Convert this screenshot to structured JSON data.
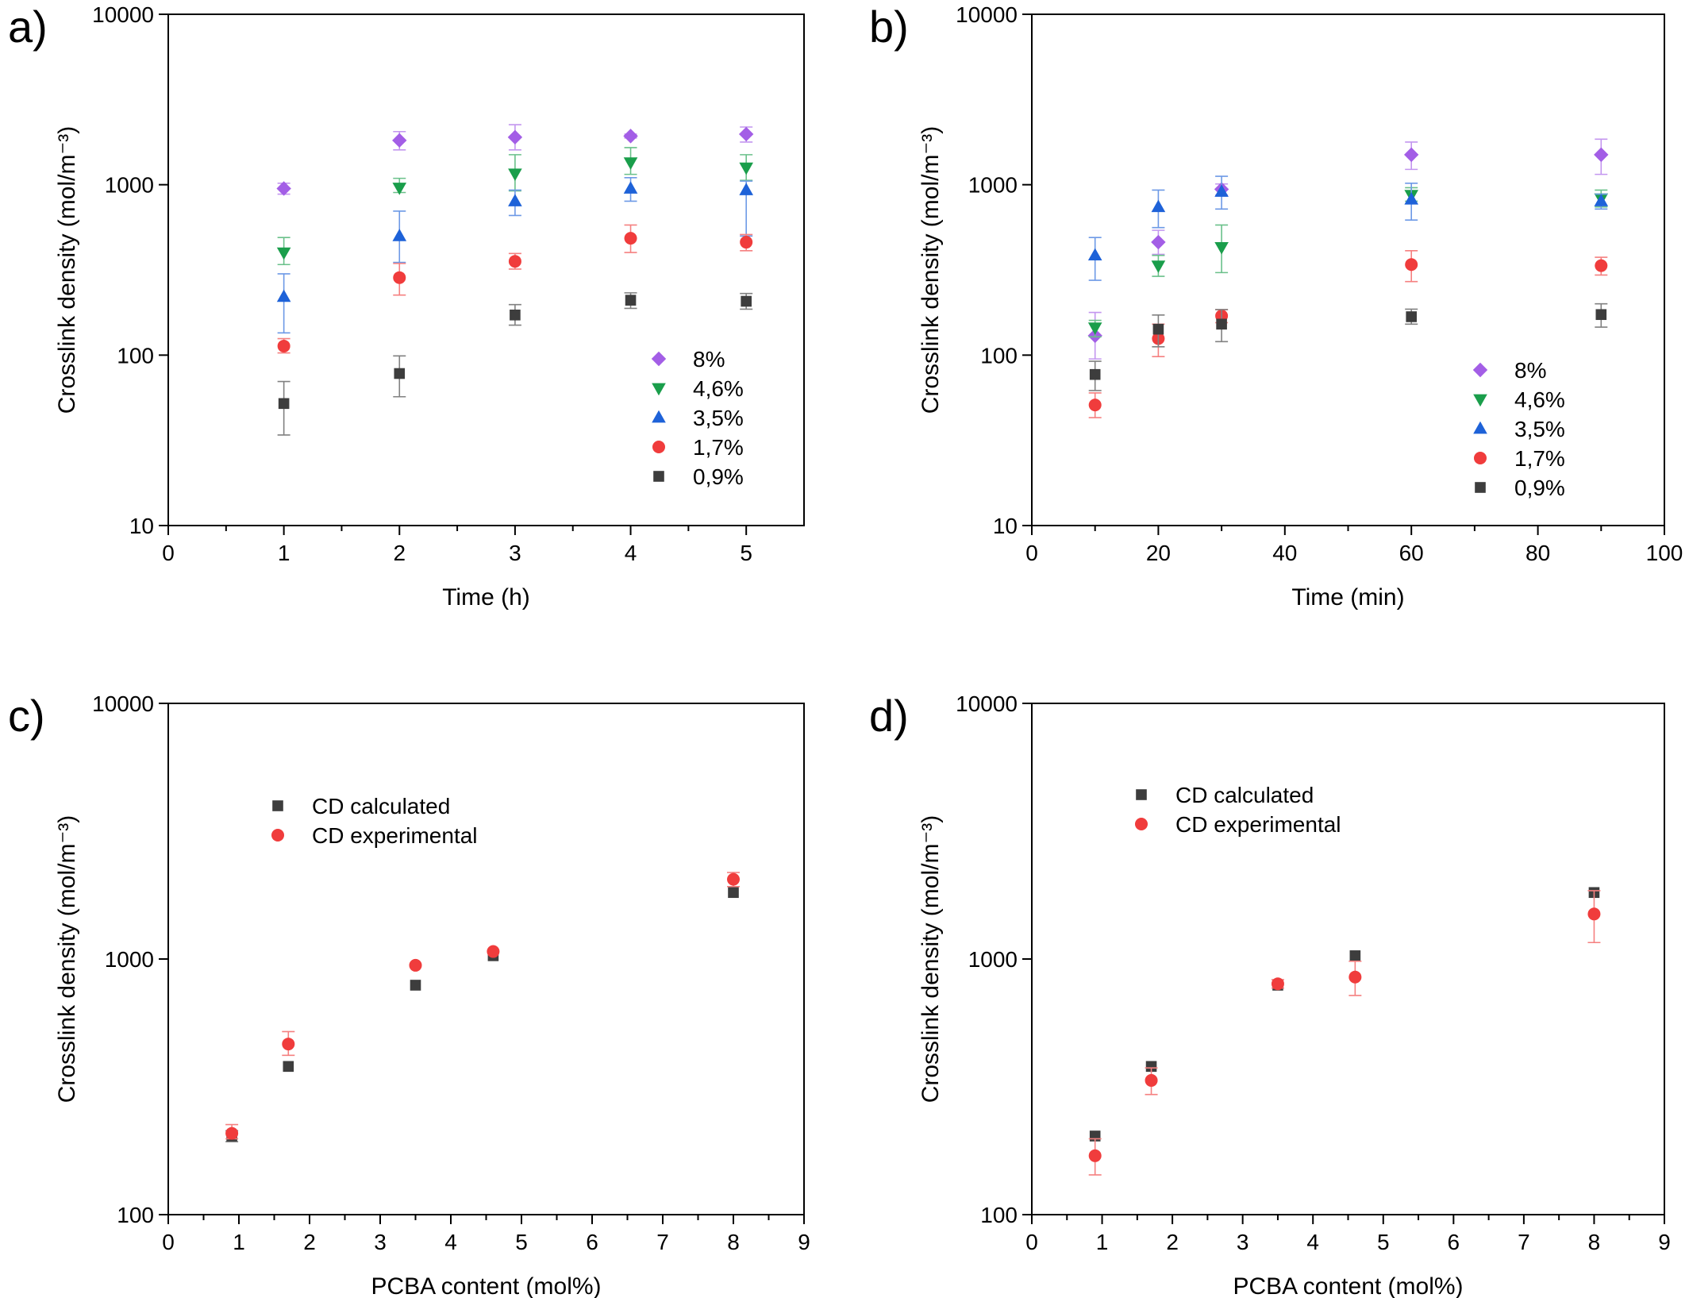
{
  "chart_data": [
    {
      "panel": "a)",
      "type": "scatter",
      "xlabel": "Time (h)",
      "ylabel": "Crosslink density (mol/m⁻³)",
      "xlim": [
        0,
        5.5
      ],
      "ylim": [
        10,
        10000
      ],
      "yscale": "log",
      "xticks": [
        0,
        1,
        2,
        3,
        4,
        5
      ],
      "yticks": [
        10,
        100,
        1000,
        10000
      ],
      "legend_position": "lower-right",
      "series": [
        {
          "name": "8%",
          "marker": "diamond",
          "color": "#a35ee6",
          "points": [
            {
              "x": 1,
              "y": 950,
              "lo": 880,
              "hi": 1020
            },
            {
              "x": 2,
              "y": 1820,
              "lo": 1600,
              "hi": 2050
            },
            {
              "x": 3,
              "y": 1900,
              "lo": 1600,
              "hi": 2250
            },
            {
              "x": 4,
              "y": 1930,
              "lo": 1880,
              "hi": 1980
            },
            {
              "x": 5,
              "y": 1980,
              "lo": 1780,
              "hi": 2180
            }
          ]
        },
        {
          "name": "4,6%",
          "marker": "triangle-down",
          "color": "#1a9e4b",
          "points": [
            {
              "x": 1,
              "y": 400,
              "lo": 340,
              "hi": 490
            },
            {
              "x": 2,
              "y": 960,
              "lo": 900,
              "hi": 1090
            },
            {
              "x": 3,
              "y": 1160,
              "lo": 920,
              "hi": 1500
            },
            {
              "x": 4,
              "y": 1350,
              "lo": 1150,
              "hi": 1650
            },
            {
              "x": 5,
              "y": 1260,
              "lo": 1060,
              "hi": 1500
            }
          ]
        },
        {
          "name": "3,5%",
          "marker": "triangle-up",
          "color": "#1e62d8",
          "points": [
            {
              "x": 1,
              "y": 220,
              "lo": 135,
              "hi": 300
            },
            {
              "x": 2,
              "y": 500,
              "lo": 350,
              "hi": 700
            },
            {
              "x": 3,
              "y": 800,
              "lo": 660,
              "hi": 930
            },
            {
              "x": 4,
              "y": 950,
              "lo": 800,
              "hi": 1100
            },
            {
              "x": 5,
              "y": 930,
              "lo": 500,
              "hi": 1050
            }
          ]
        },
        {
          "name": "1,7%",
          "marker": "circle",
          "color": "#f03c3c",
          "points": [
            {
              "x": 1,
              "y": 113,
              "lo": 103,
              "hi": 125
            },
            {
              "x": 2,
              "y": 285,
              "lo": 225,
              "hi": 345
            },
            {
              "x": 3,
              "y": 355,
              "lo": 320,
              "hi": 395
            },
            {
              "x": 4,
              "y": 485,
              "lo": 400,
              "hi": 580
            },
            {
              "x": 5,
              "y": 460,
              "lo": 410,
              "hi": 510
            }
          ]
        },
        {
          "name": "0,9%",
          "marker": "square",
          "color": "#3d3d3d",
          "points": [
            {
              "x": 1,
              "y": 52,
              "lo": 34,
              "hi": 70
            },
            {
              "x": 2,
              "y": 78,
              "lo": 57,
              "hi": 99
            },
            {
              "x": 3,
              "y": 172,
              "lo": 150,
              "hi": 198
            },
            {
              "x": 4,
              "y": 210,
              "lo": 188,
              "hi": 232
            },
            {
              "x": 5,
              "y": 207,
              "lo": 186,
              "hi": 230
            }
          ]
        }
      ]
    },
    {
      "panel": "b)",
      "type": "scatter",
      "xlabel": "Time (min)",
      "ylabel": "Crosslink density (mol/m⁻³)",
      "xlim": [
        0,
        100
      ],
      "ylim": [
        10,
        10000
      ],
      "yscale": "log",
      "xticks": [
        0,
        20,
        40,
        60,
        80,
        100
      ],
      "yticks": [
        10,
        100,
        1000,
        10000
      ],
      "legend_position": "lower-right",
      "series": [
        {
          "name": "8%",
          "marker": "diamond",
          "color": "#a35ee6",
          "points": [
            {
              "x": 10,
              "y": 130,
              "lo": 95,
              "hi": 178
            },
            {
              "x": 20,
              "y": 460,
              "lo": 390,
              "hi": 540
            },
            {
              "x": 30,
              "y": 940,
              "lo": 870,
              "hi": 1010
            },
            {
              "x": 60,
              "y": 1500,
              "lo": 1230,
              "hi": 1780
            },
            {
              "x": 90,
              "y": 1500,
              "lo": 1150,
              "hi": 1850
            }
          ]
        },
        {
          "name": "4,6%",
          "marker": "triangle-down",
          "color": "#1a9e4b",
          "points": [
            {
              "x": 10,
              "y": 145,
              "lo": 128,
              "hi": 160
            },
            {
              "x": 20,
              "y": 335,
              "lo": 290,
              "hi": 385
            },
            {
              "x": 30,
              "y": 430,
              "lo": 305,
              "hi": 580
            },
            {
              "x": 60,
              "y": 870,
              "lo": 800,
              "hi": 960
            },
            {
              "x": 90,
              "y": 830,
              "lo": 740,
              "hi": 930
            }
          ]
        },
        {
          "name": "3,5%",
          "marker": "triangle-up",
          "color": "#1e62d8",
          "points": [
            {
              "x": 10,
              "y": 385,
              "lo": 275,
              "hi": 490
            },
            {
              "x": 20,
              "y": 740,
              "lo": 560,
              "hi": 930
            },
            {
              "x": 30,
              "y": 910,
              "lo": 720,
              "hi": 1120
            },
            {
              "x": 60,
              "y": 820,
              "lo": 620,
              "hi": 1020
            },
            {
              "x": 90,
              "y": 800,
              "lo": 720,
              "hi": 880
            }
          ]
        },
        {
          "name": "1,7%",
          "marker": "circle",
          "color": "#f03c3c",
          "points": [
            {
              "x": 10,
              "y": 51,
              "lo": 43,
              "hi": 60
            },
            {
              "x": 20,
              "y": 125,
              "lo": 98,
              "hi": 152
            },
            {
              "x": 30,
              "y": 170,
              "lo": 155,
              "hi": 185
            },
            {
              "x": 60,
              "y": 340,
              "lo": 270,
              "hi": 410
            },
            {
              "x": 90,
              "y": 335,
              "lo": 295,
              "hi": 375
            }
          ]
        },
        {
          "name": "0,9%",
          "marker": "square",
          "color": "#3d3d3d",
          "points": [
            {
              "x": 10,
              "y": 77,
              "lo": 62,
              "hi": 92
            },
            {
              "x": 20,
              "y": 142,
              "lo": 112,
              "hi": 172
            },
            {
              "x": 30,
              "y": 152,
              "lo": 120,
              "hi": 185
            },
            {
              "x": 60,
              "y": 168,
              "lo": 152,
              "hi": 186
            },
            {
              "x": 90,
              "y": 173,
              "lo": 146,
              "hi": 200
            }
          ]
        }
      ]
    },
    {
      "panel": "c)",
      "type": "scatter",
      "xlabel": "PCBA content (mol%)",
      "ylabel": "Crosslink density (mol/m⁻³)",
      "xlim": [
        0,
        9
      ],
      "ylim": [
        100,
        10000
      ],
      "yscale": "log",
      "xticks": [
        0,
        1,
        2,
        3,
        4,
        5,
        6,
        7,
        8,
        9
      ],
      "yticks": [
        100,
        1000,
        10000
      ],
      "legend_position": "upper-left",
      "series": [
        {
          "name": "CD calculated",
          "marker": "square",
          "color": "#3d3d3d",
          "points": [
            {
              "x": 0.9,
              "y": 203,
              "lo": 193,
              "hi": 213
            },
            {
              "x": 1.7,
              "y": 380
            },
            {
              "x": 3.5,
              "y": 790
            },
            {
              "x": 4.6,
              "y": 1030
            },
            {
              "x": 8,
              "y": 1820
            }
          ]
        },
        {
          "name": "CD experimental",
          "marker": "circle",
          "color": "#f03c3c",
          "points": [
            {
              "x": 0.9,
              "y": 208,
              "lo": 198,
              "hi": 225
            },
            {
              "x": 1.7,
              "y": 465,
              "lo": 420,
              "hi": 520
            },
            {
              "x": 3.5,
              "y": 945
            },
            {
              "x": 4.6,
              "y": 1070
            },
            {
              "x": 8,
              "y": 2050,
              "lo": 1920,
              "hi": 2180
            }
          ]
        }
      ]
    },
    {
      "panel": "d)",
      "type": "scatter",
      "xlabel": "PCBA content (mol%)",
      "ylabel": "Crosslink density (mol/m⁻³)",
      "xlim": [
        0,
        9
      ],
      "ylim": [
        100,
        10000
      ],
      "yscale": "log",
      "xticks": [
        0,
        1,
        2,
        3,
        4,
        5,
        6,
        7,
        8,
        9
      ],
      "yticks": [
        100,
        1000,
        10000
      ],
      "legend_position": "upper-left",
      "series": [
        {
          "name": "CD calculated",
          "marker": "square",
          "color": "#3d3d3d",
          "points": [
            {
              "x": 0.9,
              "y": 203
            },
            {
              "x": 1.7,
              "y": 380
            },
            {
              "x": 3.5,
              "y": 790
            },
            {
              "x": 4.6,
              "y": 1030
            },
            {
              "x": 8,
              "y": 1820
            }
          ]
        },
        {
          "name": "CD experimental",
          "marker": "circle",
          "color": "#f03c3c",
          "points": [
            {
              "x": 0.9,
              "y": 170,
              "lo": 143,
              "hi": 198
            },
            {
              "x": 1.7,
              "y": 335,
              "lo": 295,
              "hi": 375
            },
            {
              "x": 3.5,
              "y": 800,
              "lo": 770,
              "hi": 830
            },
            {
              "x": 4.6,
              "y": 850,
              "lo": 720,
              "hi": 980
            },
            {
              "x": 8,
              "y": 1500,
              "lo": 1160,
              "hi": 1850
            }
          ]
        }
      ]
    }
  ]
}
